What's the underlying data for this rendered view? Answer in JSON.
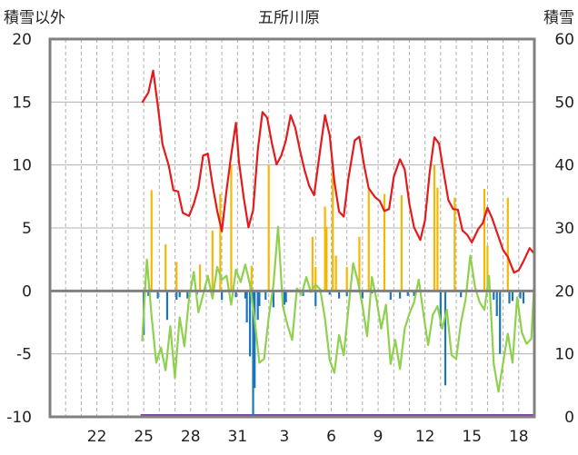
{
  "chart_data": {
    "type": "bar+line",
    "title": "五所川原",
    "y_left_label": "積雪以外",
    "y_right_label": "積雪",
    "y_left_range": [
      -10,
      20
    ],
    "y_right_range": [
      0,
      60
    ],
    "y_left_ticks": [
      "20",
      "15",
      "10",
      "5",
      "0",
      "-5",
      "-10"
    ],
    "y_right_ticks": [
      "60",
      "50",
      "40",
      "30",
      "20",
      "10",
      "0"
    ],
    "x_ticks": [
      "22",
      "25",
      "28",
      "31",
      "3",
      "6",
      "9",
      "12",
      "15",
      "18"
    ],
    "x_tick_days": [
      3,
      6,
      9,
      12,
      15,
      18,
      21,
      24,
      27,
      30
    ],
    "days_visible": 31,
    "colors": {
      "snow_depth": "#e41a1c",
      "temperature": "#8fd14f",
      "snowfall": "#f5b800",
      "rain": "#1b75bb",
      "missing_bar": "#7b3fa0",
      "zero_line": "#808080",
      "frame": "#808080",
      "grid": "#b0b0b0"
    },
    "series": {
      "snow_depth": [
        [
          5.9,
          49.9
        ],
        [
          6.3,
          51.5
        ],
        [
          6.6,
          55.0
        ],
        [
          6.9,
          49.5
        ],
        [
          7.2,
          43.3
        ],
        [
          7.6,
          39.9
        ],
        [
          7.9,
          36.0
        ],
        [
          8.2,
          35.8
        ],
        [
          8.5,
          32.4
        ],
        [
          8.9,
          31.9
        ],
        [
          9.2,
          33.8
        ],
        [
          9.5,
          36.4
        ],
        [
          9.8,
          41.5
        ],
        [
          10.1,
          41.8
        ],
        [
          10.4,
          36.9
        ],
        [
          10.7,
          32.7
        ],
        [
          11.0,
          29.5
        ],
        [
          11.3,
          36.0
        ],
        [
          11.6,
          41.6
        ],
        [
          11.9,
          46.7
        ],
        [
          12.1,
          40.4
        ],
        [
          12.4,
          34.8
        ],
        [
          12.7,
          30.1
        ],
        [
          13.0,
          32.8
        ],
        [
          13.3,
          42.4
        ],
        [
          13.6,
          48.4
        ],
        [
          13.9,
          47.5
        ],
        [
          14.2,
          43.5
        ],
        [
          14.5,
          40.1
        ],
        [
          14.8,
          41.5
        ],
        [
          15.1,
          43.9
        ],
        [
          15.4,
          47.9
        ],
        [
          15.7,
          45.9
        ],
        [
          16.0,
          42.3
        ],
        [
          16.3,
          39.1
        ],
        [
          16.6,
          36.6
        ],
        [
          16.9,
          35.2
        ],
        [
          17.3,
          42.5
        ],
        [
          17.6,
          47.9
        ],
        [
          17.9,
          44.7
        ],
        [
          18.2,
          37.4
        ],
        [
          18.5,
          32.6
        ],
        [
          18.8,
          31.8
        ],
        [
          19.1,
          37.9
        ],
        [
          19.5,
          43.9
        ],
        [
          19.8,
          44.5
        ],
        [
          20.1,
          40.0
        ],
        [
          20.4,
          36.3
        ],
        [
          20.8,
          34.9
        ],
        [
          21.1,
          34.3
        ],
        [
          21.4,
          32.7
        ],
        [
          21.7,
          33.0
        ],
        [
          22.0,
          38.1
        ],
        [
          22.4,
          40.9
        ],
        [
          22.7,
          39.3
        ],
        [
          23.0,
          33.8
        ],
        [
          23.3,
          30.1
        ],
        [
          23.7,
          28.1
        ],
        [
          24.0,
          31.2
        ],
        [
          24.3,
          38.8
        ],
        [
          24.6,
          44.4
        ],
        [
          24.9,
          43.4
        ],
        [
          25.2,
          38.7
        ],
        [
          25.5,
          34.4
        ],
        [
          25.8,
          33.0
        ],
        [
          26.1,
          32.9
        ],
        [
          26.4,
          29.6
        ],
        [
          26.7,
          28.9
        ],
        [
          27.0,
          27.7
        ],
        [
          27.4,
          29.8
        ],
        [
          27.7,
          30.8
        ],
        [
          28.0,
          33.2
        ],
        [
          28.3,
          31.5
        ],
        [
          28.7,
          28.6
        ],
        [
          29.0,
          26.5
        ],
        [
          29.3,
          25.4
        ],
        [
          29.7,
          22.9
        ],
        [
          30.0,
          23.3
        ],
        [
          30.3,
          24.7
        ],
        [
          30.7,
          26.8
        ],
        [
          31.0,
          25.9
        ]
      ],
      "temperature": [
        [
          5.9,
          -4
        ],
        [
          6.2,
          2.5
        ],
        [
          6.5,
          -2
        ],
        [
          6.8,
          -5.7
        ],
        [
          7.1,
          -4.5
        ],
        [
          7.4,
          -6.3
        ],
        [
          7.7,
          -2.8
        ],
        [
          8.0,
          -6.9
        ],
        [
          8.3,
          -2.1
        ],
        [
          8.6,
          -4.4
        ],
        [
          8.9,
          -0.6
        ],
        [
          9.2,
          1.5
        ],
        [
          9.5,
          -1.7
        ],
        [
          9.8,
          -0.3
        ],
        [
          10.1,
          1.2
        ],
        [
          10.4,
          -0.6
        ],
        [
          10.7,
          1.9
        ],
        [
          11.0,
          0.9
        ],
        [
          11.3,
          1.2
        ],
        [
          11.6,
          -1.1
        ],
        [
          11.9,
          1.7
        ],
        [
          12.2,
          0.7
        ],
        [
          12.5,
          2.1
        ],
        [
          12.8,
          0.5
        ],
        [
          13.1,
          -2.3
        ],
        [
          13.4,
          -5.7
        ],
        [
          13.7,
          -5.4
        ],
        [
          14.0,
          -2.1
        ],
        [
          14.3,
          0.5
        ],
        [
          14.6,
          5.1
        ],
        [
          14.9,
          -1.2
        ],
        [
          15.2,
          -2.7
        ],
        [
          15.5,
          -3.9
        ],
        [
          15.8,
          0.2
        ],
        [
          16.1,
          -0.3
        ],
        [
          16.4,
          1.1
        ],
        [
          16.7,
          -0.1
        ],
        [
          17.0,
          0.5
        ],
        [
          17.3,
          0.1
        ],
        [
          17.6,
          -2.2
        ],
        [
          17.9,
          -5.5
        ],
        [
          18.2,
          -6.5
        ],
        [
          18.5,
          -3.5
        ],
        [
          18.8,
          -5.1
        ],
        [
          19.1,
          -1.4
        ],
        [
          19.4,
          2.2
        ],
        [
          19.7,
          0.8
        ],
        [
          20.0,
          -1.2
        ],
        [
          20.3,
          -3.6
        ],
        [
          20.6,
          1.1
        ],
        [
          20.9,
          -0.7
        ],
        [
          21.2,
          -3.0
        ],
        [
          21.5,
          -1.1
        ],
        [
          21.8,
          -5.8
        ],
        [
          22.1,
          -3.9
        ],
        [
          22.4,
          -6.2
        ],
        [
          22.7,
          -3.0
        ],
        [
          23.0,
          -1.8
        ],
        [
          23.3,
          -0.9
        ],
        [
          23.6,
          0.9
        ],
        [
          23.9,
          -1.8
        ],
        [
          24.2,
          -4.3
        ],
        [
          24.5,
          -1.9
        ],
        [
          24.8,
          -1.2
        ],
        [
          25.1,
          -3.0
        ],
        [
          25.4,
          -1.5
        ],
        [
          25.7,
          -5.1
        ],
        [
          26.0,
          -5.4
        ],
        [
          26.3,
          -2.5
        ],
        [
          26.6,
          -0.7
        ],
        [
          26.9,
          2.8
        ],
        [
          27.2,
          0.3
        ],
        [
          27.5,
          -0.9
        ],
        [
          27.8,
          -1.5
        ],
        [
          28.1,
          1.2
        ],
        [
          28.4,
          -5.8
        ],
        [
          28.7,
          -8.0
        ],
        [
          29.0,
          -5.7
        ],
        [
          29.3,
          -3.4
        ],
        [
          29.6,
          -5.7
        ],
        [
          29.9,
          -0.5
        ],
        [
          30.2,
          -3.3
        ],
        [
          30.5,
          -4.2
        ],
        [
          30.8,
          -3.8
        ],
        [
          31.0,
          0.9
        ]
      ],
      "snowfall": [
        [
          6.5,
          8.0
        ],
        [
          7.4,
          3.7
        ],
        [
          8.1,
          2.3
        ],
        [
          9.6,
          2.1
        ],
        [
          10.4,
          4.8
        ],
        [
          10.9,
          7.7
        ],
        [
          11.6,
          10.0
        ],
        [
          12.9,
          2.0
        ],
        [
          14.0,
          10.0
        ],
        [
          16.8,
          4.3
        ],
        [
          17.0,
          1.9
        ],
        [
          17.6,
          6.7
        ],
        [
          17.7,
          5.1
        ],
        [
          18.1,
          10.0
        ],
        [
          18.3,
          2.8
        ],
        [
          19.0,
          1.9
        ],
        [
          19.8,
          4.3
        ],
        [
          20.4,
          8.0
        ],
        [
          21.4,
          7.7
        ],
        [
          22.5,
          7.6
        ],
        [
          24.6,
          10.0
        ],
        [
          24.8,
          8.2
        ],
        [
          25.9,
          7.4
        ],
        [
          27.8,
          8.1
        ],
        [
          28.0,
          3.6
        ],
        [
          29.3,
          7.4
        ],
        [
          31.0,
          3.2
        ]
      ],
      "rain": [
        [
          6.0,
          -3.5
        ],
        [
          6.3,
          -0.4
        ],
        [
          6.9,
          -0.6
        ],
        [
          7.5,
          -2.3
        ],
        [
          8.1,
          -0.7
        ],
        [
          8.3,
          -0.5
        ],
        [
          8.8,
          -0.6
        ],
        [
          9.4,
          -0.3
        ],
        [
          11.0,
          -0.7
        ],
        [
          11.9,
          -0.5
        ],
        [
          12.5,
          -0.6
        ],
        [
          12.6,
          -2.5
        ],
        [
          12.8,
          -5.2
        ],
        [
          13.0,
          -10.0
        ],
        [
          13.1,
          -7.7
        ],
        [
          13.3,
          -2.3
        ],
        [
          13.4,
          -1.2
        ],
        [
          13.8,
          -0.7
        ],
        [
          14.3,
          -1.3
        ],
        [
          15.0,
          -1.1
        ],
        [
          15.1,
          -0.9
        ],
        [
          16.2,
          -0.4
        ],
        [
          17.0,
          -1.2
        ],
        [
          17.9,
          -0.3
        ],
        [
          18.5,
          -0.6
        ],
        [
          19.0,
          -0.4
        ],
        [
          20.0,
          -0.6
        ],
        [
          20.6,
          -0.2
        ],
        [
          21.8,
          -0.7
        ],
        [
          22.4,
          -0.6
        ],
        [
          22.9,
          -0.4
        ],
        [
          23.3,
          -0.4
        ],
        [
          25.0,
          -2.8
        ],
        [
          25.3,
          -7.5
        ],
        [
          26.3,
          -0.5
        ],
        [
          28.4,
          -0.7
        ],
        [
          28.6,
          -2.0
        ],
        [
          28.8,
          -5.0
        ],
        [
          29.4,
          -1.0
        ],
        [
          29.6,
          -0.8
        ],
        [
          30.1,
          -0.6
        ],
        [
          30.3,
          -1.0
        ]
      ],
      "missing_days": [
        5.8,
        31.0
      ]
    }
  }
}
